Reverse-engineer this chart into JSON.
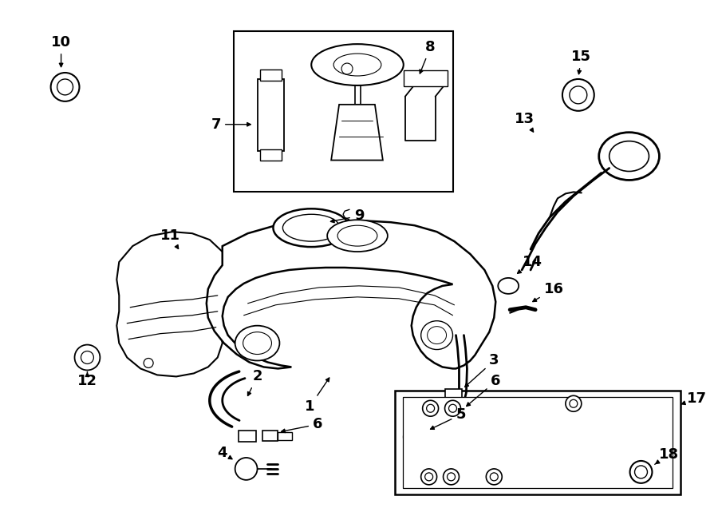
{
  "bg_color": "#ffffff",
  "line_color": "#000000",
  "lw": 1.3
}
